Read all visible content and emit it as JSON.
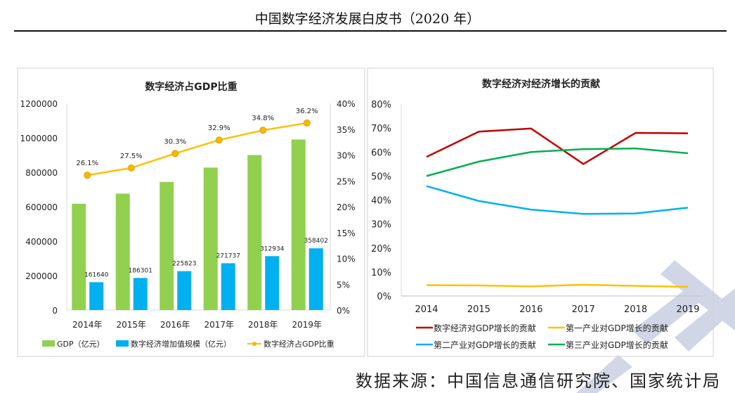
{
  "document_title": "中国数字经济发展白皮书（2020 年）",
  "source_note": "数据来源：中国信息通信研究院、国家统计局",
  "chart_data": [
    {
      "type": "bar",
      "title": "数字经济占GDP比重",
      "categories": [
        "2014年",
        "2015年",
        "2016年",
        "2017年",
        "2018年",
        "2019年"
      ],
      "left_axis": {
        "range": [
          0,
          1200000
        ],
        "ticks": [
          "0",
          "200000",
          "400000",
          "600000",
          "800000",
          "1000000",
          "1200000"
        ]
      },
      "right_axis": {
        "range": [
          0,
          40
        ],
        "ticks": [
          "0%",
          "5%",
          "10%",
          "15%",
          "20%",
          "25%",
          "30%",
          "35%",
          "40%"
        ]
      },
      "series": [
        {
          "name": "GDP（亿元）",
          "kind": "bar",
          "axis": "left",
          "color": "#92d050",
          "values": [
            617000,
            676000,
            744000,
            827000,
            900000,
            990000
          ]
        },
        {
          "name": "数字经济增加值规模（亿元）",
          "kind": "bar",
          "axis": "left",
          "color": "#00b0f0",
          "values": [
            161640,
            186301,
            225823,
            271737,
            312934,
            358402
          ],
          "labels": [
            "161640",
            "186301",
            "225823",
            "271737",
            "312934",
            "358402"
          ]
        },
        {
          "name": "数字经济占GDP比重",
          "kind": "line",
          "axis": "right",
          "color": "#ffc000",
          "values": [
            26.1,
            27.5,
            30.3,
            32.9,
            34.8,
            36.2
          ],
          "labels": [
            "26.1%",
            "27.5%",
            "30.3%",
            "32.9%",
            "34.8%",
            "36.2%"
          ]
        }
      ],
      "legend": "bottom",
      "grid": false
    },
    {
      "type": "line",
      "title": "数字经济对经济增长的贡献",
      "categories": [
        "2014",
        "2015",
        "2016",
        "2017",
        "2018",
        "2019"
      ],
      "y_axis": {
        "range": [
          0,
          80
        ],
        "ticks": [
          "0%",
          "10%",
          "20%",
          "30%",
          "40%",
          "50%",
          "60%",
          "70%",
          "80%"
        ]
      },
      "series": [
        {
          "name": "数字经济对GDP增长的贡献",
          "color": "#c00000",
          "values": [
            58,
            68.5,
            69.8,
            55,
            68,
            67.8
          ]
        },
        {
          "name": "第一产业对GDP增长的贡献",
          "color": "#ffc000",
          "values": [
            4.5,
            4.4,
            4.0,
            4.7,
            4.2,
            3.8
          ]
        },
        {
          "name": "第二产业对GDP增长的贡献",
          "color": "#00b0f0",
          "values": [
            45.8,
            39.6,
            36,
            34.2,
            34.4,
            36.8
          ]
        },
        {
          "name": "第三产业对GDP增长的贡献",
          "color": "#00b050",
          "values": [
            50,
            56,
            60,
            61.2,
            61.5,
            59.5
          ]
        }
      ],
      "legend": "bottom",
      "grid": false
    }
  ]
}
